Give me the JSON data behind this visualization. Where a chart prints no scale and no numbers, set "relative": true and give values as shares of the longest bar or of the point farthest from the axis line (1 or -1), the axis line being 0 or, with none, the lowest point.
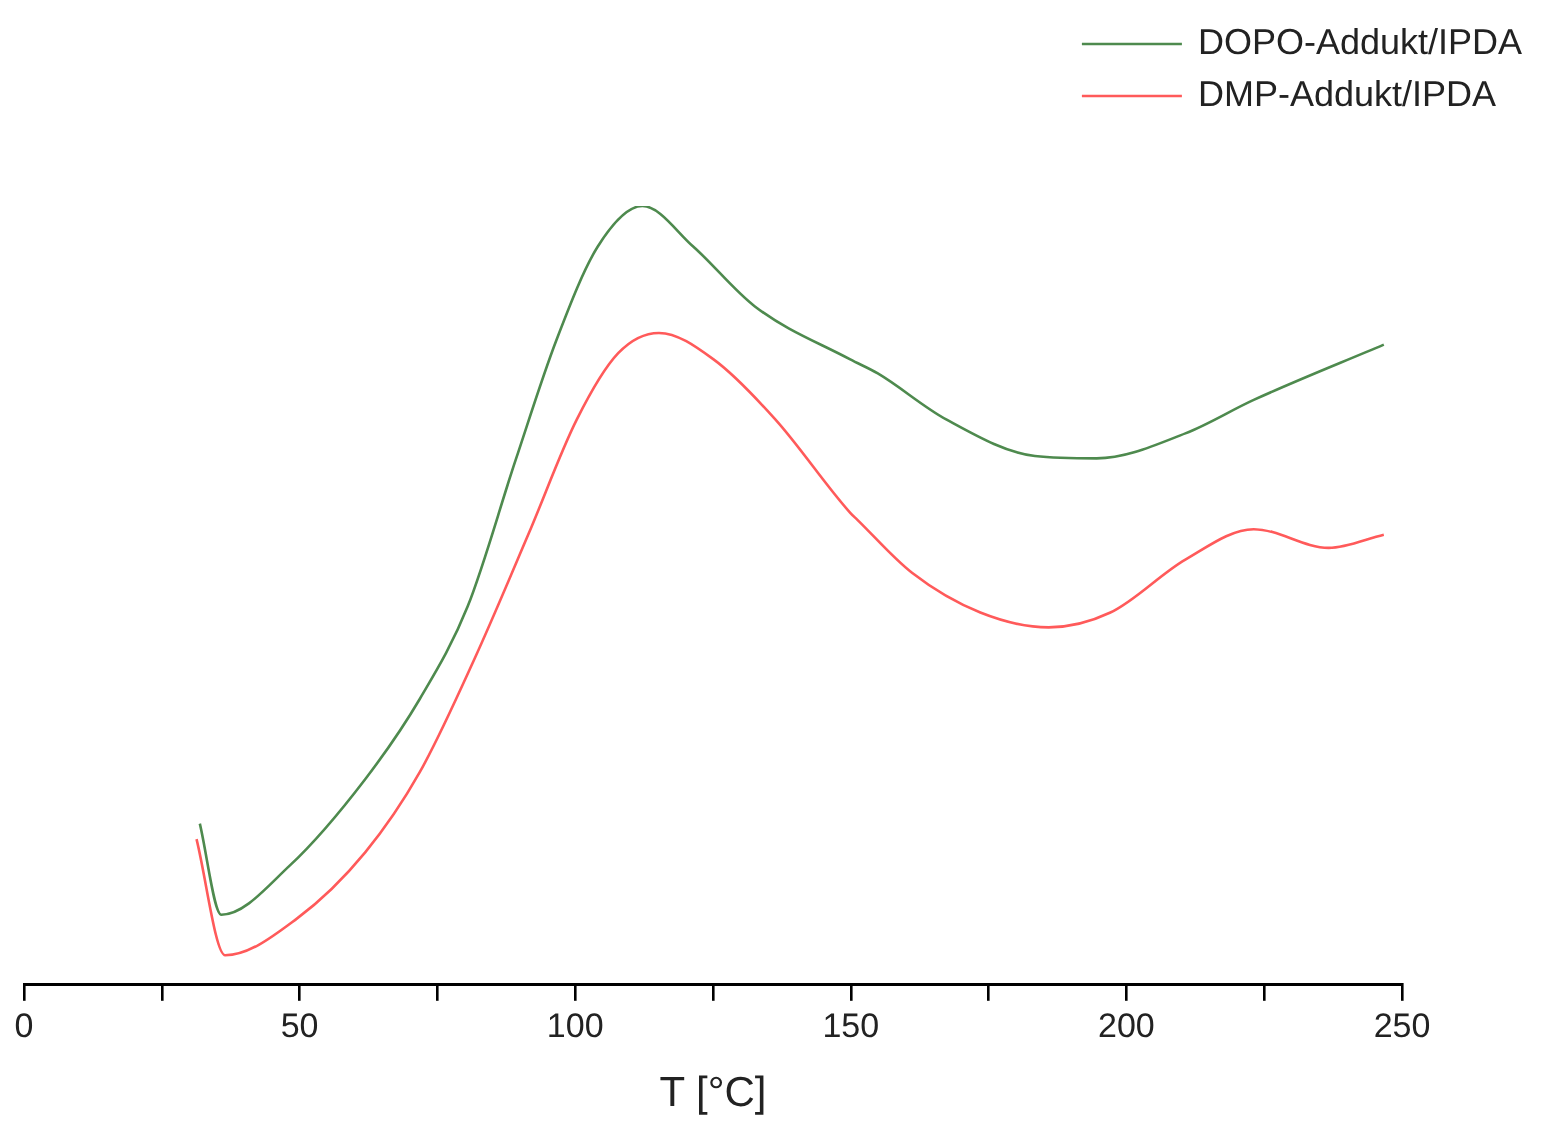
{
  "chart_data": {
    "type": "line",
    "xlabel": "T [°C]",
    "relative": true,
    "legend": "top right",
    "xlim": [
      0,
      250
    ],
    "xticks": [
      0,
      {
        "value": 25,
        "label": null
      },
      50,
      {
        "value": 75,
        "label": null
      },
      100,
      {
        "value": 125,
        "label": null
      },
      150,
      {
        "value": 175,
        "label": null
      },
      200,
      {
        "value": 225,
        "label": null
      },
      250
    ],
    "series": [
      {
        "name": "DOPO-Addukt/IPDA",
        "color": "#4e8a4e",
        "x": [
          31.9,
          35.8,
          48.2,
          61.9,
          71.8,
          80.5,
          89.2,
          96.6,
          104.1,
          112.2,
          121.4,
          132.6,
          149.9,
          154.9,
          167.3,
          183.4,
          194.6,
          210.7,
          223.1,
          246.7
        ],
        "values": [
          0.207,
          0.09,
          0.153,
          0.264,
          0.367,
          0.486,
          0.674,
          0.828,
          0.948,
          1,
          0.948,
          0.871,
          0.803,
          0.785,
          0.726,
          0.679,
          0.676,
          0.708,
          0.751,
          0.822
        ]
      },
      {
        "name": "DMP-Addukt/IPDA",
        "color": "#ff5a5a",
        "x": [
          31.3,
          36.5,
          49.5,
          61.9,
          71.8,
          81.7,
          91.6,
          100.3,
          107.8,
          115.2,
          125.1,
          136.3,
          149.9,
          151.2,
          161.1,
          173.5,
          185.9,
          197.1,
          210.7,
          223.1,
          236.7,
          246.7
        ],
        "values": [
          0.187,
          0.038,
          0.085,
          0.17,
          0.273,
          0.418,
          0.58,
          0.726,
          0.811,
          0.837,
          0.803,
          0.726,
          0.606,
          0.597,
          0.529,
          0.478,
          0.459,
          0.478,
          0.546,
          0.585,
          0.561,
          0.578
        ]
      }
    ]
  }
}
